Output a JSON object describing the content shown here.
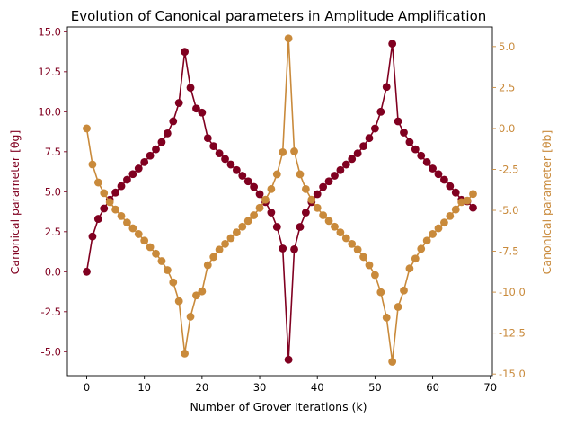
{
  "chart_data": {
    "type": "line",
    "title": "Evolution of Canonical parameters in Amplitude Amplification",
    "xlabel": "Number of Grover Iterations (k)",
    "ylabel_left": "Canonical parameter [θg]",
    "ylabel_right": "Canonical parameter [θb]",
    "xlim": [
      -3.35,
      70.35
    ],
    "ylim_left": [
      -6.5,
      15.3
    ],
    "ylim_right": [
      -15.1,
      6.2
    ],
    "x_ticks": [
      0,
      10,
      20,
      30,
      40,
      50,
      60,
      70
    ],
    "y_left_ticks": [
      -5.0,
      -2.5,
      0.0,
      2.5,
      5.0,
      7.5,
      10.0,
      12.5,
      15.0
    ],
    "y_right_ticks": [
      -15.0,
      -12.5,
      -10.0,
      -7.5,
      -5.0,
      -2.5,
      0.0,
      2.5,
      5.0
    ],
    "grid": false,
    "colors": {
      "theta_g": "#800020",
      "theta_b": "#c98a3b",
      "axis": "#000000"
    },
    "x": [
      0,
      1,
      2,
      3,
      4,
      5,
      6,
      7,
      8,
      9,
      10,
      11,
      12,
      13,
      14,
      15,
      16,
      17,
      18,
      19,
      20,
      21,
      22,
      23,
      24,
      25,
      26,
      27,
      28,
      29,
      30,
      31,
      32,
      33,
      34,
      35,
      36,
      37,
      38,
      39,
      40,
      41,
      42,
      43,
      44,
      45,
      46,
      47,
      48,
      49,
      50,
      51,
      52,
      53,
      54,
      55,
      56,
      57,
      58,
      59,
      60,
      61,
      62,
      63,
      64,
      65,
      66,
      67
    ],
    "series": [
      {
        "axis": "left",
        "color": "#800020",
        "values": [
          0.0,
          2.2,
          3.3,
          3.95,
          4.5,
          4.95,
          5.35,
          5.75,
          6.1,
          6.45,
          6.85,
          7.25,
          7.65,
          8.1,
          8.65,
          9.4,
          10.55,
          13.75,
          11.5,
          10.2,
          9.95,
          8.35,
          7.85,
          7.4,
          7.05,
          6.7,
          6.35,
          6.0,
          5.65,
          5.3,
          4.85,
          4.35,
          3.7,
          2.8,
          1.45,
          -5.5,
          1.4,
          2.8,
          3.7,
          4.35,
          4.85,
          5.3,
          5.65,
          6.0,
          6.35,
          6.7,
          7.05,
          7.4,
          7.85,
          8.35,
          8.95,
          10.0,
          11.55,
          14.25,
          9.4,
          8.7,
          8.1,
          7.65,
          7.25,
          6.85,
          6.45,
          6.1,
          5.75,
          5.35,
          4.95,
          4.5,
          4.4,
          4.0
        ]
      },
      {
        "axis": "right",
        "color": "#c98a3b",
        "values": [
          0.0,
          -2.2,
          -3.3,
          -3.95,
          -4.5,
          -4.95,
          -5.35,
          -5.75,
          -6.1,
          -6.45,
          -6.85,
          -7.25,
          -7.65,
          -8.1,
          -8.65,
          -9.4,
          -10.55,
          -13.75,
          -11.5,
          -10.2,
          -9.95,
          -8.35,
          -7.85,
          -7.4,
          -7.05,
          -6.7,
          -6.35,
          -6.0,
          -5.65,
          -5.3,
          -4.85,
          -4.35,
          -3.7,
          -2.8,
          -1.45,
          5.5,
          -1.4,
          -2.8,
          -3.7,
          -4.35,
          -4.85,
          -5.3,
          -5.65,
          -6.0,
          -6.35,
          -6.7,
          -7.05,
          -7.4,
          -7.85,
          -8.35,
          -8.95,
          -10.0,
          -11.55,
          -14.25,
          -10.9,
          -9.9,
          -8.55,
          -7.95,
          -7.35,
          -6.85,
          -6.45,
          -6.1,
          -5.75,
          -5.35,
          -4.95,
          -4.5,
          -4.4,
          -4.0
        ]
      }
    ]
  }
}
